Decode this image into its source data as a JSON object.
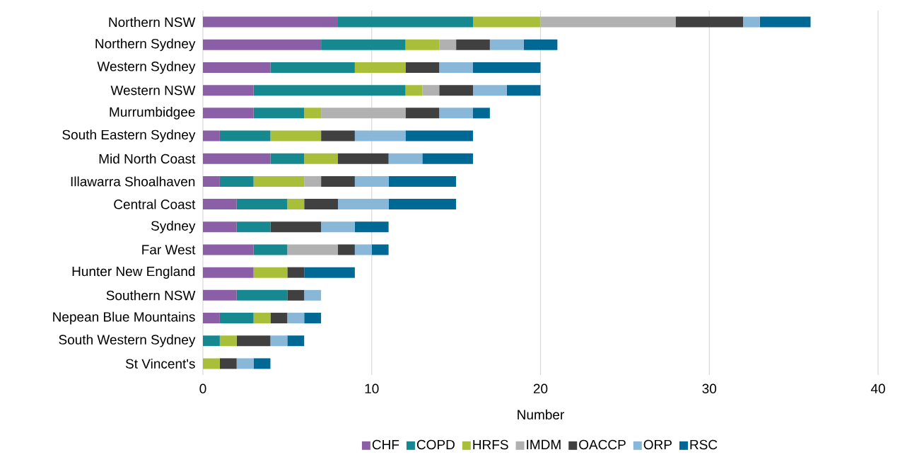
{
  "chart_data": {
    "type": "bar",
    "orientation": "horizontal",
    "stacked": true,
    "categories": [
      "Northern NSW",
      "Northern Sydney",
      "Western Sydney",
      "Western NSW",
      "Murrumbidgee",
      "South Eastern Sydney",
      "Mid North Coast",
      "Illawarra Shoalhaven",
      "Central Coast",
      "Sydney",
      "Far West",
      "Hunter New England",
      "Southern NSW",
      "Nepean Blue Mountains",
      "South Western Sydney",
      "St Vincent's"
    ],
    "series": [
      {
        "name": "CHF",
        "color": "#8b5fa6",
        "values": [
          8,
          7,
          4,
          3,
          3,
          1,
          4,
          1,
          2,
          2,
          3,
          3,
          2,
          1,
          null,
          null
        ]
      },
      {
        "name": "COPD",
        "color": "#168890",
        "values": [
          8,
          5,
          5,
          9,
          3,
          3,
          2,
          2,
          3,
          2,
          2,
          null,
          3,
          2,
          1,
          null
        ]
      },
      {
        "name": "HRFS",
        "color": "#a9bf3a",
        "values": [
          4,
          2,
          3,
          1,
          1,
          3,
          2,
          3,
          1,
          null,
          null,
          2,
          null,
          1,
          1,
          1
        ]
      },
      {
        "name": "IMDM",
        "color": "#b1b1b1",
        "values": [
          8,
          1,
          null,
          1,
          5,
          null,
          null,
          1,
          null,
          null,
          3,
          null,
          null,
          null,
          null,
          null
        ]
      },
      {
        "name": "OACCP",
        "color": "#404040",
        "values": [
          4,
          2,
          2,
          2,
          2,
          2,
          3,
          2,
          2,
          3,
          1,
          1,
          1,
          1,
          2,
          1
        ]
      },
      {
        "name": "ORP",
        "color": "#89b7d7",
        "values": [
          1,
          2,
          2,
          2,
          2,
          3,
          2,
          2,
          3,
          2,
          1,
          null,
          1,
          1,
          1,
          1
        ]
      },
      {
        "name": "RSC",
        "color": "#006894",
        "values": [
          3,
          2,
          4,
          2,
          1,
          4,
          3,
          4,
          4,
          2,
          1,
          3,
          null,
          1,
          1,
          1
        ]
      }
    ],
    "xlim": [
      0,
      40
    ],
    "xticks": [
      0,
      10,
      20,
      30,
      40
    ],
    "xlabel": "Number",
    "grid": "x",
    "legend": "bottom"
  }
}
